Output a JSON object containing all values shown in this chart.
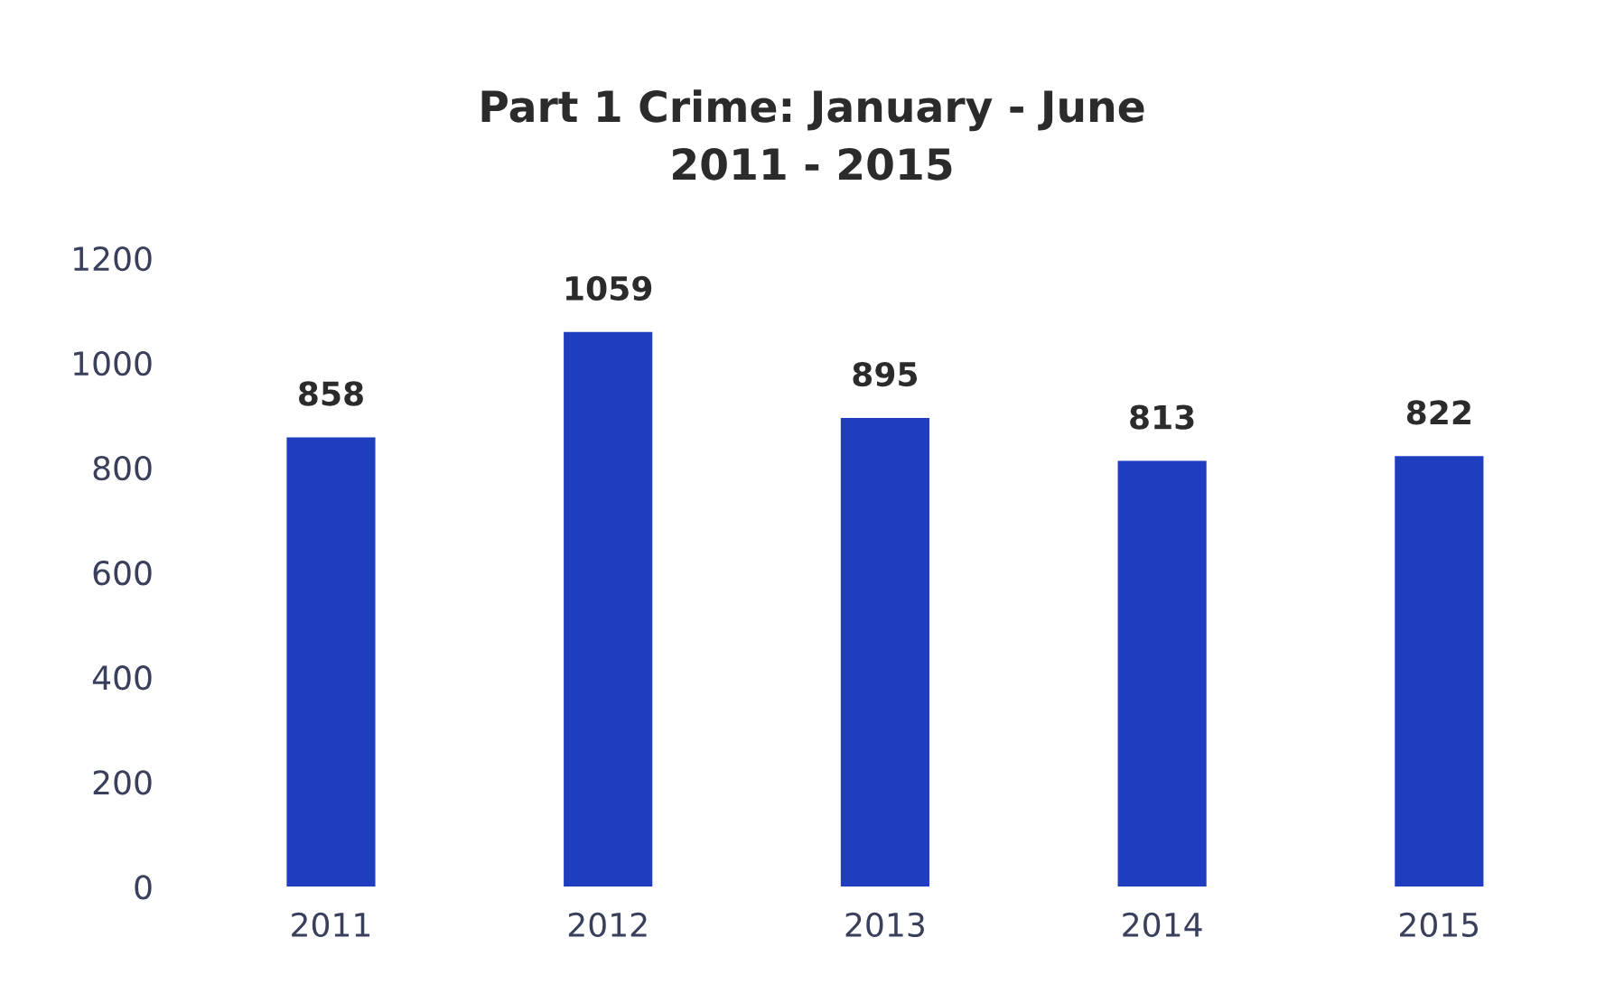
{
  "chart_data": {
    "type": "bar",
    "title": "Part 1 Crime: January - June\n2011 - 2015",
    "categories": [
      "2011",
      "2012",
      "2013",
      "2014",
      "2015"
    ],
    "values": [
      858,
      1059,
      895,
      813,
      822
    ],
    "color": "#1f3dbf",
    "ylim": [
      0,
      1200
    ],
    "yticks": [
      0,
      200,
      400,
      600,
      800,
      1000,
      1200
    ],
    "data_labels": true,
    "grid": false,
    "legend": false
  }
}
